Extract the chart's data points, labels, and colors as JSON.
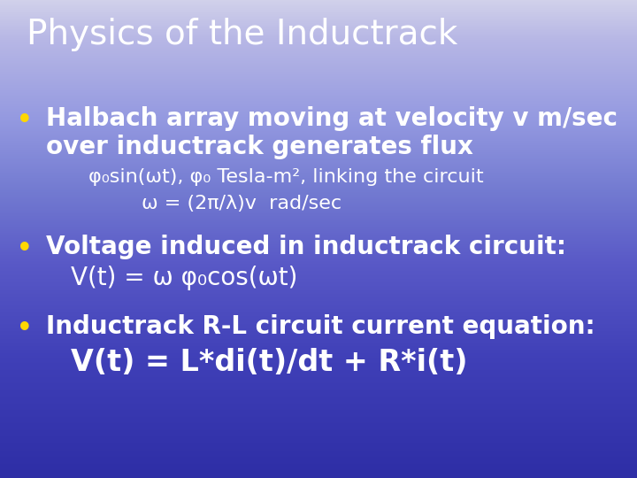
{
  "title": "Physics of the Inductrack",
  "title_color": "#FFFFFF",
  "title_fontsize": 28,
  "bullet_color": "#FFD700",
  "text_color": "#FFFFFF",
  "bullet1_line1": "Halbach array moving at velocity v m/sec",
  "bullet1_line2": "over inductrack generates flux",
  "sub1_line1": "φ₀sin(ωt), φ₀ Tesla-m², linking the circuit",
  "sub1_line2": "ω = (2π/λ)v  rad/sec",
  "bullet2_line1": "Voltage induced in inductrack circuit:",
  "sub2_line1": "V(t) = ω φ₀cos(ωt)",
  "bullet3_line1": "Inductrack R-L circuit current equation:",
  "sub3_line1": "V(t) = L*di(t)/dt + R*i(t)",
  "bullet_fontsize": 20,
  "sub_fontsize": 16,
  "sub_large_fontsize": 20,
  "eq_fontsize": 24
}
